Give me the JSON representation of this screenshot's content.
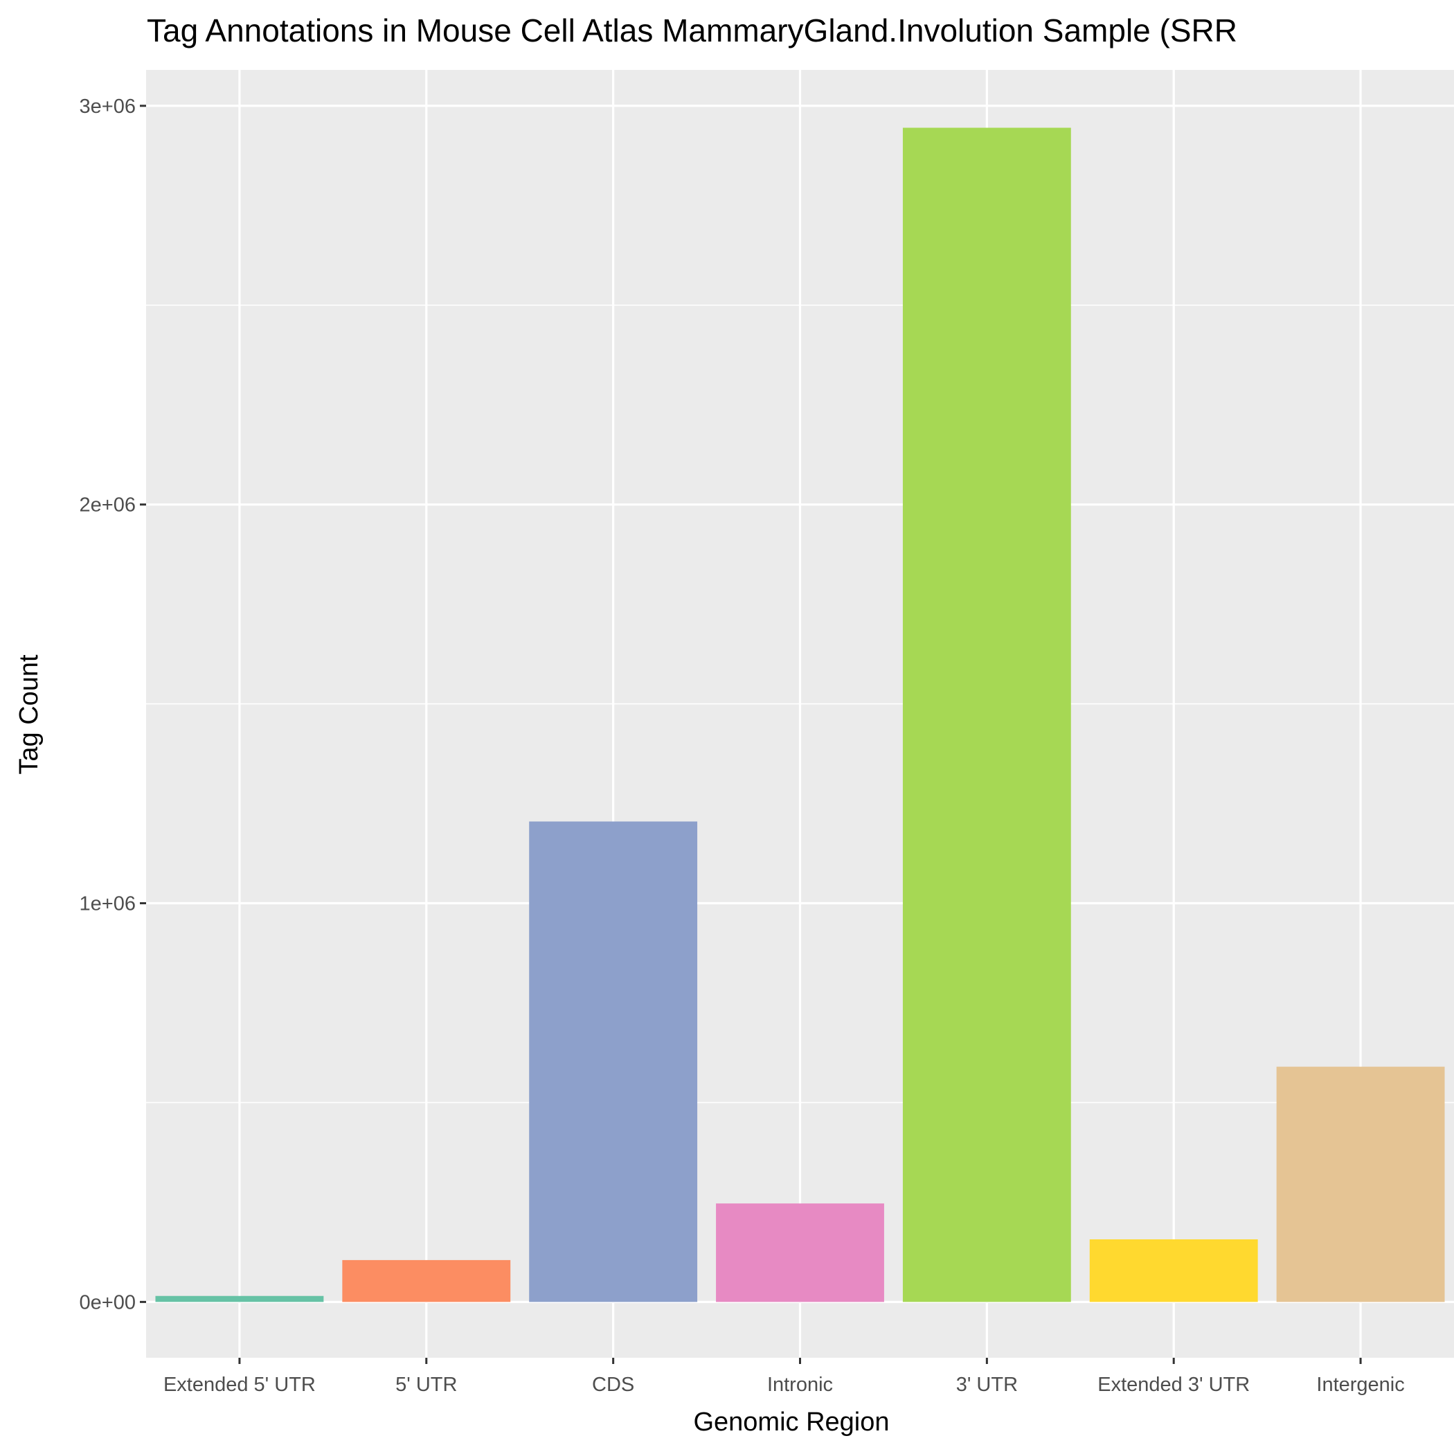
{
  "chart_data": {
    "type": "bar",
    "title": "Tag Annotations in Mouse Cell Atlas MammaryGland.Involution Sample (SRR",
    "xlabel": "Genomic Region",
    "ylabel": "Tag Count",
    "categories": [
      "Extended 5' UTR",
      "5' UTR",
      "CDS",
      "Intronic",
      "3' UTR",
      "Extended 3' UTR",
      "Intergenic"
    ],
    "values": [
      15000,
      105000,
      1205000,
      247000,
      2945000,
      157000,
      590000
    ],
    "colors": [
      "#66C2A5",
      "#FC8D62",
      "#8DA0CB",
      "#E78AC3",
      "#A6D854",
      "#FFD92F",
      "#E5C494"
    ],
    "yticks": [
      0,
      1000000,
      2000000,
      3000000
    ],
    "ytick_labels": [
      "0e+00",
      "1e+06",
      "2e+06",
      "3e+06"
    ],
    "ylim": [
      -140000,
      3090000
    ],
    "grid": true,
    "legend": "none",
    "panel_background": "#EBEBEB",
    "grid_color": "#FFFFFF",
    "axis_color": "#333333"
  }
}
